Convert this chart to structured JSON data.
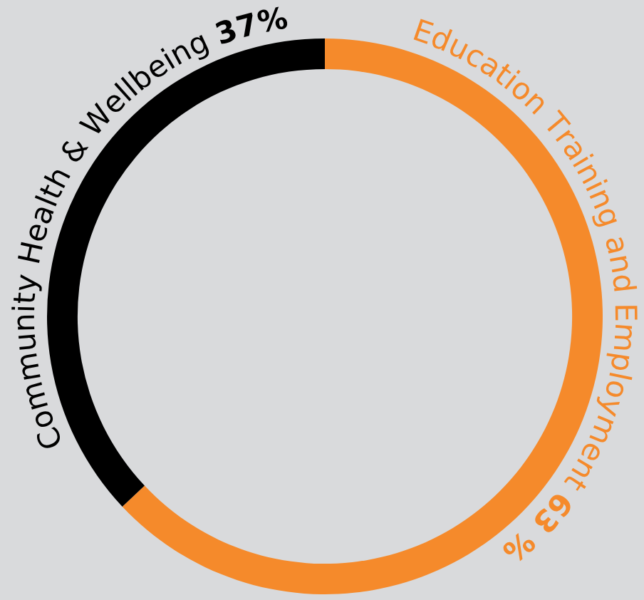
{
  "chart_data": {
    "type": "donut",
    "categories": [
      "Education Training and Employment",
      "Community Health & Wellbeing"
    ],
    "values": [
      63,
      37
    ],
    "value_labels": [
      "63 %",
      "37%"
    ],
    "colors": [
      "#f58a2b",
      "#000000"
    ],
    "legend": false
  }
}
